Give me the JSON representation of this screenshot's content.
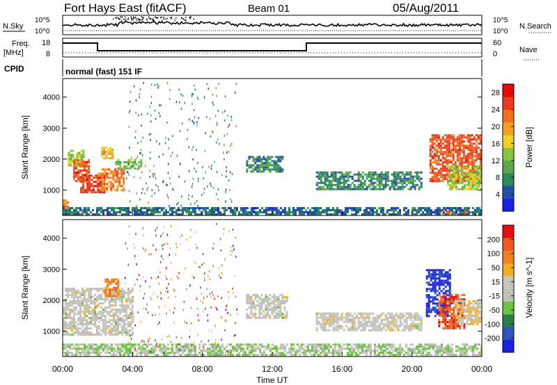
{
  "header": {
    "title": "Fort Hays East (fitACF)",
    "beam": "Beam 01",
    "date": "05/Aug/2011"
  },
  "sky_panel": {
    "label": "N.Sky",
    "left_ticks": [
      "10^5",
      "10^0"
    ],
    "right_ticks": [
      "10^5",
      "10^0"
    ],
    "right_label": "N.Search"
  },
  "freq_panel": {
    "label_line1": "Freq.",
    "label_line2": "[MHz]",
    "left_ticks": [
      "18",
      "8"
    ],
    "right_ticks": [
      "60",
      "0"
    ],
    "right_label": "Nave"
  },
  "cpid_panel": {
    "label": "CPID",
    "text": "normal (fast) 151 IF"
  },
  "colors": {
    "power_scale": [
      "#1a22e6",
      "#224fa8",
      "#2b8a5a",
      "#5aa84a",
      "#88c640",
      "#f0d020",
      "#f5a020",
      "#f07020",
      "#ee3a1e",
      "#e60a0a"
    ],
    "velocity_scale": [
      "#1a22e6",
      "#3355bb",
      "#2a7e48",
      "#6cc43e",
      "#c0c0b8",
      "#c8c8c0",
      "#f5b020",
      "#f08020",
      "#f05a1e",
      "#e61010"
    ],
    "frame": "#000000"
  },
  "chart_data": [
    {
      "type": "heatmap",
      "name": "power",
      "xlabel": "",
      "ylabel": "Slant Range [km]",
      "x_range_hours": [
        0,
        24
      ],
      "y_range_km": [
        180,
        4600
      ],
      "y_ticks": [
        "1000",
        "2000",
        "3000",
        "4000"
      ],
      "colorbar": {
        "label": "Power [dB]",
        "ticks": [
          "4",
          "8",
          "12",
          "16",
          "20",
          "24",
          "28"
        ],
        "range": [
          0,
          30
        ]
      },
      "regions": [
        {
          "t": [
            0.0,
            0.35
          ],
          "r": [
            300,
            700
          ],
          "v": 22
        },
        {
          "t": [
            0.3,
            1.2
          ],
          "r": [
            1800,
            2300
          ],
          "v": 14
        },
        {
          "t": [
            0.6,
            1.5
          ],
          "r": [
            1300,
            2000
          ],
          "v": 24
        },
        {
          "t": [
            1.0,
            2.4
          ],
          "r": [
            900,
            1500
          ],
          "v": 26
        },
        {
          "t": [
            2.0,
            3.5
          ],
          "r": [
            1000,
            1700
          ],
          "v": 22
        },
        {
          "t": [
            2.2,
            2.9
          ],
          "r": [
            2000,
            2400
          ],
          "v": 18
        },
        {
          "t": [
            3.0,
            4.5
          ],
          "r": [
            1700,
            2000
          ],
          "v": 12
        },
        {
          "t": [
            10.5,
            12.6
          ],
          "r": [
            1600,
            2100
          ],
          "v": 8
        },
        {
          "t": [
            14.5,
            20.5
          ],
          "r": [
            1000,
            1600
          ],
          "v": 8
        },
        {
          "t": [
            21.0,
            24.0
          ],
          "r": [
            1300,
            2800
          ],
          "v": 24
        },
        {
          "t": [
            22.0,
            24.0
          ],
          "r": [
            1000,
            1800
          ],
          "v": 14
        },
        {
          "t": [
            21.5,
            23.2
          ],
          "r": [
            250,
            400
          ],
          "v": 24
        },
        {
          "t": [
            0.0,
            24.0
          ],
          "r": [
            200,
            450
          ],
          "v": 6
        }
      ]
    },
    {
      "type": "heatmap",
      "name": "velocity",
      "xlabel": "Time UT",
      "ylabel": "Slant Range [km]",
      "x_range_hours": [
        0,
        24
      ],
      "x_ticks": [
        "00:00",
        "04:00",
        "08:00",
        "12:00",
        "16:00",
        "20:00",
        "00:00"
      ],
      "y_range_km": [
        180,
        4600
      ],
      "y_ticks": [
        "1000",
        "2000",
        "3000",
        "4000"
      ],
      "colorbar": {
        "label": "Velocity [m s^-1]",
        "ticks": [
          "200",
          "100",
          "50",
          "15",
          "-15",
          "-50",
          "-100",
          "-200"
        ],
        "range": [
          -250,
          250
        ]
      },
      "regions": [
        {
          "t": [
            0.0,
            4.0
          ],
          "r": [
            900,
            2400
          ],
          "v": 0
        },
        {
          "t": [
            2.4,
            3.2
          ],
          "r": [
            2100,
            2700
          ],
          "v": 120
        },
        {
          "t": [
            10.5,
            12.8
          ],
          "r": [
            1400,
            2200
          ],
          "v": 0
        },
        {
          "t": [
            14.5,
            20.5
          ],
          "r": [
            1000,
            1600
          ],
          "v": 0
        },
        {
          "t": [
            20.8,
            22.2
          ],
          "r": [
            1500,
            3000
          ],
          "v": -220
        },
        {
          "t": [
            21.5,
            23.0
          ],
          "r": [
            1100,
            2200
          ],
          "v": 180
        },
        {
          "t": [
            22.5,
            24.0
          ],
          "r": [
            1200,
            2000
          ],
          "v": 40
        },
        {
          "t": [
            0.0,
            24.0
          ],
          "r": [
            200,
            600
          ],
          "v": -40
        }
      ]
    }
  ]
}
